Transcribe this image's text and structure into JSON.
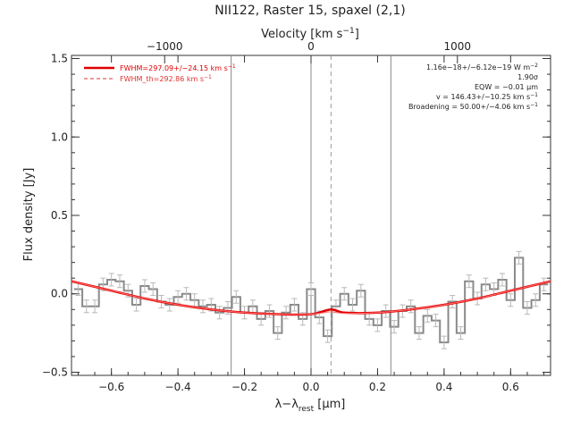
{
  "chart_data": {
    "type": "line",
    "title": "NII122, Raster 15, spaxel (2,1)",
    "xlabel": "λ−λ",
    "xlabel_sub": "rest",
    "xlabel_unit": " [μm]",
    "ylabel": "Flux density [Jy]",
    "top_axis_label": "Velocity [km s",
    "top_axis_label_sup": "−1",
    "top_axis_label_end": "]",
    "xlim": [
      -0.72,
      0.72
    ],
    "ylim": [
      -0.52,
      1.52
    ],
    "x_ticks": [
      "−0.6",
      "−0.4",
      "−0.2",
      "0.0",
      "0.2",
      "0.4",
      "0.6"
    ],
    "x_tick_values": [
      -0.6,
      -0.4,
      -0.2,
      0.0,
      0.2,
      0.4,
      0.6
    ],
    "y_ticks": [
      "−0.5",
      "0.0",
      "0.5",
      "1.0",
      "1.5"
    ],
    "y_tick_values": [
      -0.5,
      0.0,
      0.5,
      1.0,
      1.5
    ],
    "top_ticks": [
      "−1000",
      "0",
      "1000"
    ],
    "top_tick_values": [
      -0.44,
      0.0,
      0.44
    ],
    "vertical_lines": [
      -0.24,
      0.0,
      0.24
    ],
    "dashed_line_x": 0.06,
    "legend": {
      "position": "top-left",
      "entries": [
        {
          "label": "FWHM=297.09+/−24.15 km s",
          "sup": "−1",
          "style": "solid",
          "color": "#e00000"
        },
        {
          "label": "FWHM_th=292.86 km s",
          "sup": "−1",
          "style": "dashed",
          "color": "#e03030"
        }
      ]
    },
    "annotations": [
      {
        "text": "1.16e−18+/−6.12e−19 W m",
        "sup": "−2"
      },
      {
        "text": "1.90σ",
        "sup": ""
      },
      {
        "text": "EQW = −0.01 μm",
        "sup": ""
      },
      {
        "text": "v = 146.43+/−10.25 km s",
        "sup": "−1"
      },
      {
        "text": "Broadening = 50.00+/−4.06 km s",
        "sup": "−1"
      }
    ],
    "series": [
      {
        "style": "steps",
        "color": "#808080",
        "x": [
          -0.7,
          -0.675,
          -0.65,
          -0.625,
          -0.6,
          -0.575,
          -0.55,
          -0.525,
          -0.5,
          -0.475,
          -0.45,
          -0.425,
          -0.4,
          -0.375,
          -0.35,
          -0.325,
          -0.3,
          -0.275,
          -0.25,
          -0.225,
          -0.2,
          -0.175,
          -0.15,
          -0.125,
          -0.1,
          -0.075,
          -0.05,
          -0.025,
          0.0,
          0.025,
          0.05,
          0.075,
          0.1,
          0.125,
          0.15,
          0.175,
          0.2,
          0.225,
          0.25,
          0.275,
          0.3,
          0.325,
          0.35,
          0.375,
          0.4,
          0.425,
          0.45,
          0.475,
          0.5,
          0.525,
          0.55,
          0.575,
          0.6,
          0.625,
          0.65,
          0.675,
          0.7
        ],
        "y": [
          0.03,
          -0.08,
          -0.08,
          0.06,
          0.09,
          0.08,
          0.02,
          -0.07,
          0.05,
          0.03,
          -0.05,
          -0.07,
          -0.02,
          0.0,
          -0.04,
          -0.08,
          -0.07,
          -0.12,
          -0.09,
          -0.02,
          -0.12,
          -0.08,
          -0.16,
          -0.11,
          -0.25,
          -0.12,
          -0.07,
          -0.16,
          0.03,
          -0.15,
          -0.27,
          -0.08,
          0.0,
          -0.07,
          0.02,
          -0.16,
          -0.2,
          -0.11,
          -0.21,
          -0.11,
          -0.08,
          -0.25,
          -0.14,
          -0.17,
          -0.31,
          -0.05,
          -0.25,
          0.08,
          -0.03,
          0.06,
          0.03,
          0.09,
          -0.04,
          0.23,
          -0.09,
          -0.04,
          0.06
        ]
      },
      {
        "name": "FWHM=297.09+/−24.15 km s−1",
        "style": "line",
        "color": "#e00000",
        "x": [
          -0.72,
          -0.6,
          -0.5,
          -0.4,
          -0.3,
          -0.2,
          -0.1,
          0.0,
          0.06,
          0.1,
          0.2,
          0.3,
          0.4,
          0.5,
          0.6,
          0.72
        ],
        "y": [
          0.08,
          0.02,
          -0.03,
          -0.07,
          -0.1,
          -0.12,
          -0.13,
          -0.13,
          -0.1,
          -0.12,
          -0.12,
          -0.1,
          -0.07,
          -0.03,
          0.02,
          0.08
        ]
      },
      {
        "name": "FWHM_th=292.86 km s−1",
        "style": "thin",
        "color": "#ff7070",
        "x": [
          -0.72,
          -0.6,
          -0.5,
          -0.4,
          -0.3,
          -0.2,
          -0.1,
          0.0,
          0.06,
          0.1,
          0.2,
          0.3,
          0.4,
          0.5,
          0.6,
          0.72
        ],
        "y": [
          0.08,
          0.02,
          -0.03,
          -0.07,
          -0.1,
          -0.12,
          -0.13,
          -0.13,
          -0.115,
          -0.125,
          -0.12,
          -0.1,
          -0.07,
          -0.03,
          0.02,
          0.08
        ]
      }
    ]
  }
}
